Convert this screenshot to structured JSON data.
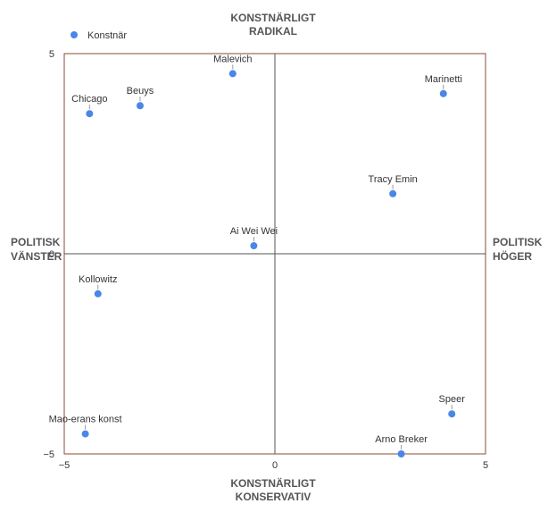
{
  "chart_data": {
    "type": "scatter",
    "xlim": [
      -5,
      5
    ],
    "ylim": [
      -5,
      5
    ],
    "grid": false,
    "legend": {
      "placement": "top-left",
      "entries": [
        "Konstnär"
      ]
    },
    "quadrant_labels": {
      "top": [
        "KONSTNÄRLIGT",
        "RADIKAL"
      ],
      "bottom": [
        "KONSTNÄRLIGT",
        "KONSERVATIV"
      ],
      "left": [
        "POLITISK",
        "VÄNSTER"
      ],
      "right": [
        "POLITISK",
        "HÖGER"
      ]
    },
    "x_ticks": [
      "−5",
      "0",
      "5"
    ],
    "y_ticks": [
      "5",
      "0",
      "−5"
    ],
    "series": [
      {
        "name": "Konstnär",
        "color": "#4a86e8",
        "points": [
          {
            "label": "Malevich",
            "x": -1.0,
            "y": 4.5
          },
          {
            "label": "Beuys",
            "x": -3.2,
            "y": 3.7
          },
          {
            "label": "Chicago",
            "x": -4.4,
            "y": 3.5
          },
          {
            "label": "Marinetti",
            "x": 4.0,
            "y": 4.0
          },
          {
            "label": "Tracy Emin",
            "x": 2.8,
            "y": 1.5
          },
          {
            "label": "Ai Wei Wei",
            "x": -0.5,
            "y": 0.2
          },
          {
            "label": "Kollowitz",
            "x": -4.2,
            "y": -1.0
          },
          {
            "label": "Speer",
            "x": 4.2,
            "y": -4.0
          },
          {
            "label": "Mao-erans konst",
            "x": -4.5,
            "y": -4.5
          },
          {
            "label": "Arno Breker",
            "x": 3.0,
            "y": -5.0
          }
        ]
      }
    ]
  }
}
